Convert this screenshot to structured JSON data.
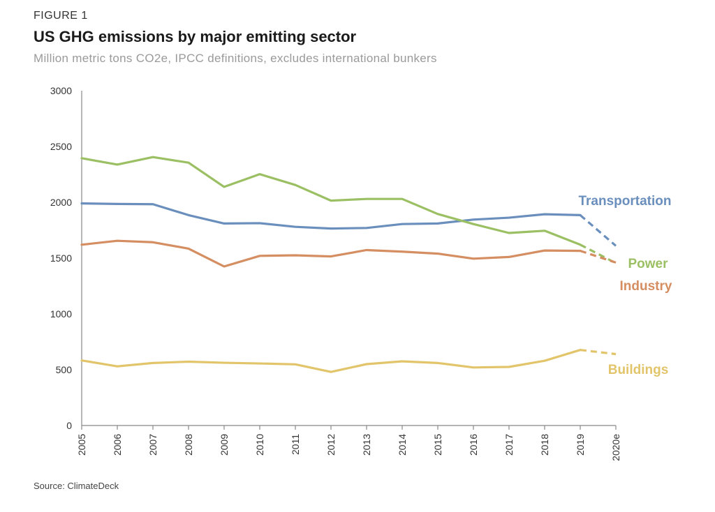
{
  "header": {
    "figure_label": "FIGURE 1",
    "title": "US GHG emissions by major emitting sector",
    "subtitle": "Million metric tons CO2e, IPCC definitions, excludes international bunkers"
  },
  "footer": {
    "source": "Source: ClimateDeck"
  },
  "chart_data": {
    "type": "line",
    "title": "US GHG emissions by major emitting sector",
    "subtitle": "Million metric tons CO2e, IPCC definitions, excludes international bunkers",
    "xlabel": "",
    "ylabel": "",
    "ylim": [
      0,
      3000
    ],
    "yticks": [
      0,
      500,
      1000,
      1500,
      2000,
      2500,
      3000
    ],
    "categories": [
      "2005",
      "2006",
      "2007",
      "2008",
      "2009",
      "2010",
      "2011",
      "2012",
      "2013",
      "2014",
      "2015",
      "2016",
      "2017",
      "2018",
      "2019",
      "2020e"
    ],
    "grid": false,
    "legend": "direct labels at line ends",
    "estimate_segment": "2019 to 2020e drawn dashed",
    "series": [
      {
        "name": "Transportation",
        "color": "#6a8fbd",
        "values": [
          1990,
          1985,
          1983,
          1885,
          1810,
          1813,
          1780,
          1765,
          1770,
          1805,
          1810,
          1845,
          1862,
          1893,
          1885,
          1610
        ]
      },
      {
        "name": "Power",
        "color": "#9bbf63",
        "values": [
          2395,
          2338,
          2405,
          2355,
          2138,
          2252,
          2155,
          2015,
          2030,
          2030,
          1895,
          1805,
          1725,
          1745,
          1620,
          1455
        ]
      },
      {
        "name": "Industry",
        "color": "#d48e62",
        "values": [
          1620,
          1655,
          1642,
          1585,
          1425,
          1520,
          1525,
          1515,
          1572,
          1558,
          1540,
          1495,
          1510,
          1568,
          1565,
          1460
        ]
      },
      {
        "name": "Buildings",
        "color": "#e2c56b",
        "values": [
          583,
          530,
          560,
          572,
          562,
          556,
          548,
          480,
          550,
          575,
          560,
          520,
          525,
          580,
          677,
          640
        ]
      }
    ]
  }
}
